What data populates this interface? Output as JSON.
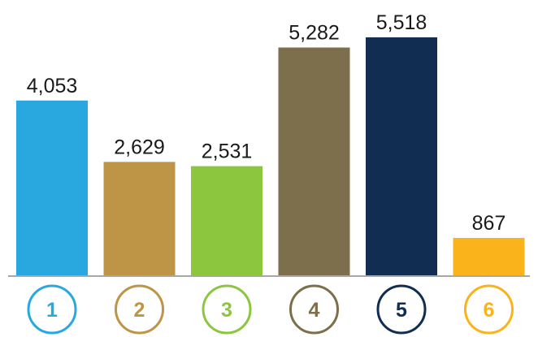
{
  "chart_data": {
    "type": "bar",
    "categories": [
      "1",
      "2",
      "3",
      "4",
      "5",
      "6"
    ],
    "values": [
      4053,
      2629,
      2531,
      5282,
      5518,
      867
    ],
    "value_labels": [
      "4,053",
      "2,629",
      "2,531",
      "5,282",
      "5,518",
      "867"
    ],
    "colors": [
      "#29a8e0",
      "#be9446",
      "#8cc63f",
      "#7d6f4b",
      "#112d52",
      "#fbb31c"
    ],
    "ylim": [
      0,
      6000
    ],
    "grid": false,
    "legend": "none",
    "title": "",
    "xlabel": "",
    "ylabel": ""
  }
}
